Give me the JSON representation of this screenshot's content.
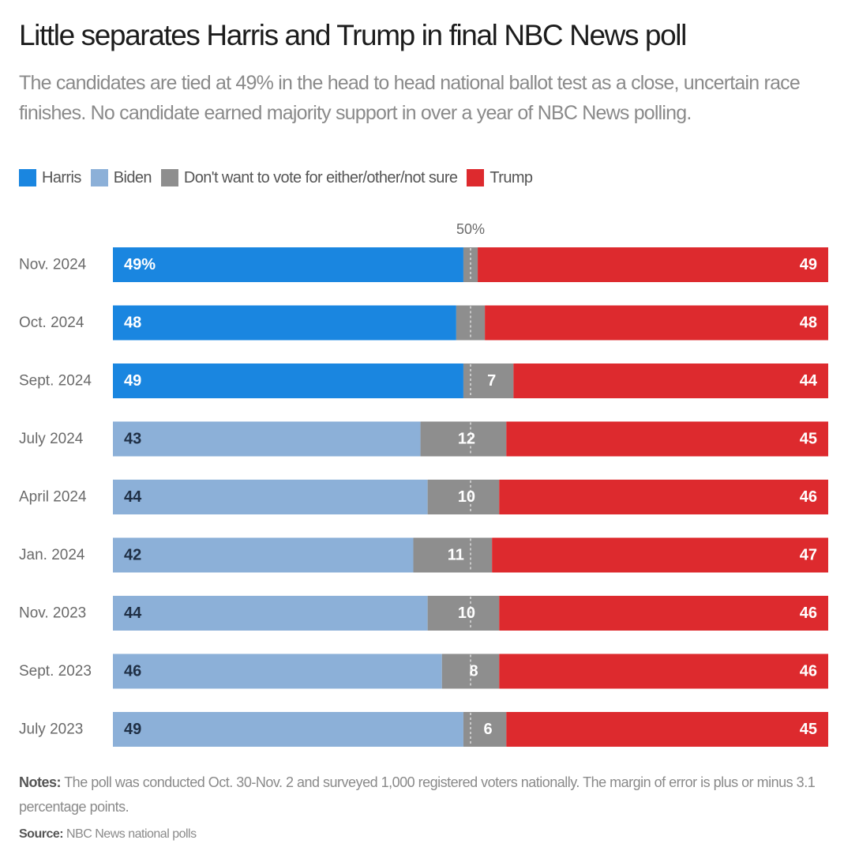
{
  "chart_data": {
    "type": "bar",
    "stacked": true,
    "orientation": "horizontal",
    "title": "Little separates Harris and Trump in final NBC News poll",
    "subtitle": "The candidates are tied at 49% in the head to head national ballot test as a close, uncertain race finishes. No candidate earned majority support in over a year of NBC News polling.",
    "reference_line": {
      "value": 50,
      "label": "50%"
    },
    "xlim": [
      0,
      100
    ],
    "legend": [
      {
        "name": "Harris",
        "color": "#1a86e0"
      },
      {
        "name": "Biden",
        "color": "#8cb0d8"
      },
      {
        "name": "Don't want to vote for either/other/not sure",
        "color": "#8e8e8e"
      },
      {
        "name": "Trump",
        "color": "#dd2a2e"
      }
    ],
    "categories": [
      "Nov. 2024",
      "Oct. 2024",
      "Sept. 2024",
      "July 2024",
      "April 2024",
      "Jan. 2024",
      "Nov. 2023",
      "Sept. 2023",
      "July 2023"
    ],
    "series": [
      {
        "name": "Democratic candidate",
        "values": [
          49,
          48,
          49,
          43,
          44,
          42,
          44,
          46,
          49
        ],
        "candidate": [
          "Harris",
          "Harris",
          "Harris",
          "Biden",
          "Biden",
          "Biden",
          "Biden",
          "Biden",
          "Biden"
        ],
        "labels": [
          "49%",
          "48",
          "49",
          "43",
          "44",
          "42",
          "44",
          "46",
          "49"
        ]
      },
      {
        "name": "Don't want to vote for either/other/not sure",
        "values": [
          2,
          4,
          7,
          12,
          10,
          11,
          10,
          8,
          6
        ],
        "labels": [
          "",
          "",
          "7",
          "12",
          "10",
          "11",
          "10",
          "8",
          "6"
        ]
      },
      {
        "name": "Trump",
        "values": [
          49,
          48,
          44,
          45,
          46,
          47,
          46,
          46,
          45
        ],
        "labels": [
          "49",
          "48",
          "44",
          "45",
          "46",
          "47",
          "46",
          "46",
          "45"
        ]
      }
    ]
  },
  "notes": {
    "label": "Notes:",
    "text": " The poll was conducted Oct. 30-Nov. 2 and surveyed 1,000 registered voters nationally. The margin of error is plus or minus 3.1 percentage points."
  },
  "source": {
    "label": "Source:",
    "text": " NBC News national polls"
  }
}
